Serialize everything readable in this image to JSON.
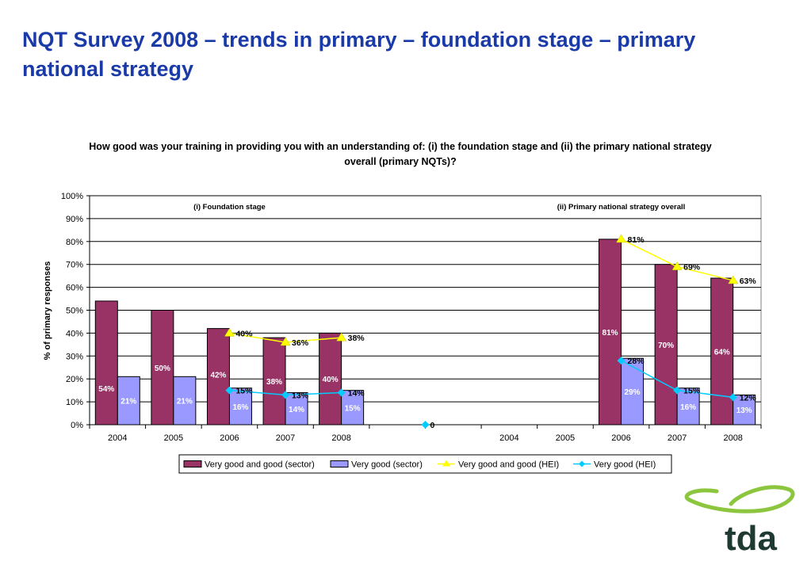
{
  "slide": {
    "title": "NQT Survey 2008 – trends in primary – foundation stage – primary national strategy"
  },
  "colors": {
    "title": "#1a3aa8",
    "bar_sector_good": "#993366",
    "bar_sector_verygood": "#9999ff",
    "line_hei_good": "#ffff00",
    "line_hei_verygood": "#00ccff",
    "logo_green": "#8cc63f",
    "logo_text": "#1e3a32"
  },
  "logo": {
    "text": "tda"
  },
  "chart_data": {
    "type": "bar",
    "title": "How good was your training in providing you with an understanding of: (i) the foundation stage and (ii) the primary national strategy overall (primary NQTs)?",
    "ylabel": "% of primary responses",
    "ylim": [
      0,
      100
    ],
    "yticks": [
      "0%",
      "10%",
      "20%",
      "30%",
      "40%",
      "50%",
      "60%",
      "70%",
      "80%",
      "90%",
      "100%"
    ],
    "grid": true,
    "legend_position": "bottom",
    "panels": [
      {
        "label": "(i) Foundation stage",
        "categories": [
          "2004",
          "2005",
          "2006",
          "2007",
          "2008"
        ],
        "start_slot": 0
      },
      {
        "label": "(ii) Primary national strategy overall",
        "categories": [
          "2004",
          "2005",
          "2006",
          "2007",
          "2008"
        ],
        "start_slot": 7
      }
    ],
    "total_slots": 12,
    "gap_label": "0",
    "series": [
      {
        "name": "Very good and good (sector)",
        "kind": "bar",
        "color": "#993366",
        "values": [
          54,
          50,
          42,
          38,
          40,
          null,
          null,
          null,
          null,
          81,
          70,
          64
        ],
        "labels": [
          "54%",
          "50%",
          "42%",
          "38%",
          "40%",
          "",
          "",
          "",
          "",
          "81%",
          "70%",
          "64%"
        ],
        "label_value": [
          16,
          25,
          22,
          19,
          20,
          null,
          null,
          null,
          null,
          40.5,
          35,
          32
        ]
      },
      {
        "name": "Very good (sector)",
        "kind": "bar",
        "color": "#9999ff",
        "values": [
          21,
          21,
          16,
          14,
          15,
          null,
          null,
          null,
          null,
          29,
          16,
          13
        ],
        "labels": [
          "21%",
          "21%",
          "16%",
          "14%",
          "15%",
          "",
          "",
          "",
          "",
          "29%",
          "16%",
          "13%"
        ],
        "label_value": [
          10.5,
          10.5,
          8,
          7,
          7.5,
          null,
          null,
          null,
          null,
          14.5,
          8,
          6.5
        ]
      },
      {
        "name": "Very good and good (HEI)",
        "kind": "line",
        "color": "#ffff00",
        "values": [
          null,
          null,
          40,
          36,
          38,
          null,
          null,
          null,
          null,
          81,
          69,
          63
        ],
        "labels": [
          "",
          "",
          "40%",
          "36%",
          "38%",
          "",
          "",
          "",
          "",
          "81%",
          "69%",
          "63%"
        ]
      },
      {
        "name": "Very good (HEI)",
        "kind": "line",
        "color": "#00ccff",
        "values": [
          null,
          null,
          15,
          13,
          14,
          null,
          null,
          null,
          null,
          28,
          15,
          12
        ],
        "labels": [
          "",
          "",
          "15%",
          "13%",
          "14%",
          "",
          "",
          "",
          "",
          "28%",
          "15%",
          "12%"
        ]
      }
    ]
  }
}
